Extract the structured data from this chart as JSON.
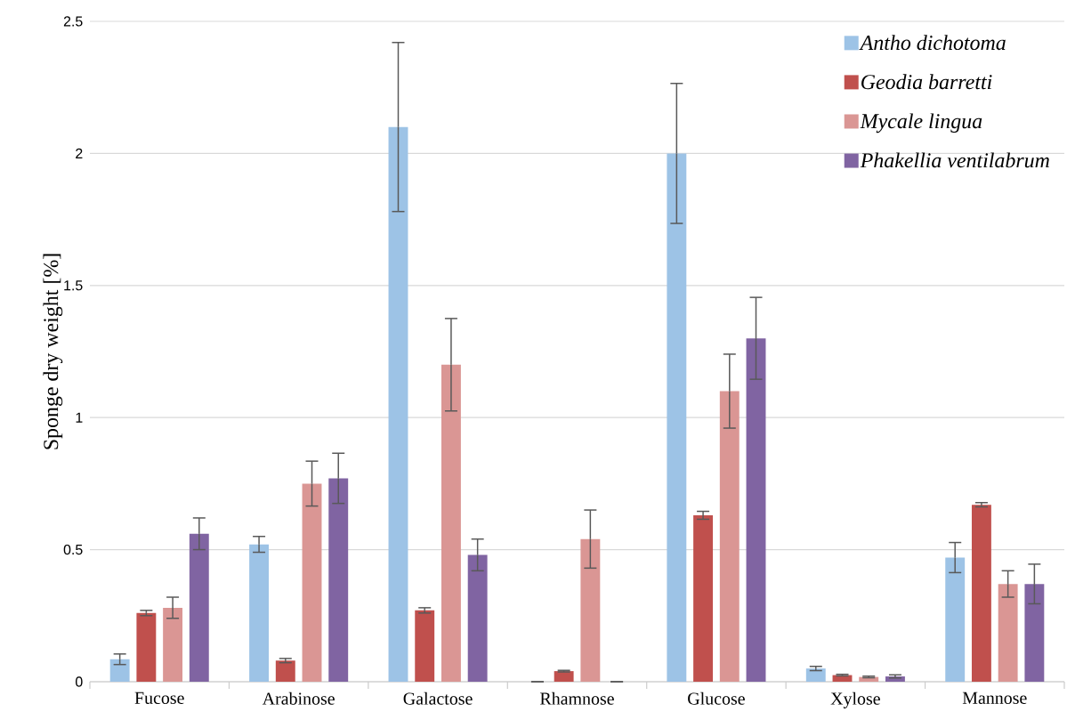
{
  "chart_data": {
    "type": "bar",
    "ylabel": "Sponge dry weight [%]",
    "categories": [
      "Fucose",
      "Arabinose",
      "Galactose",
      "Rhamnose",
      "Glucose",
      "Xylose",
      "Mannose"
    ],
    "series": [
      {
        "name": "Antho dichotoma",
        "color": "#9dc3e6",
        "values": [
          0.085,
          0.52,
          2.1,
          0,
          2.0,
          0.05,
          0.47
        ],
        "errors": [
          0.02,
          0.03,
          0.32,
          0,
          0.265,
          0.008,
          0.057
        ]
      },
      {
        "name": "Geodia barretti",
        "color": "#c0504d",
        "values": [
          0.26,
          0.08,
          0.27,
          0.04,
          0.63,
          0.025,
          0.67
        ],
        "errors": [
          0.01,
          0.008,
          0.01,
          0.003,
          0.015,
          0.003,
          0.008
        ]
      },
      {
        "name": "Mycale lingua",
        "color": "#da9694",
        "values": [
          0.28,
          0.75,
          1.2,
          0.54,
          1.1,
          0.018,
          0.37
        ],
        "errors": [
          0.04,
          0.085,
          0.175,
          0.11,
          0.14,
          0.003,
          0.05
        ]
      },
      {
        "name": "Phakellia ventilabrum",
        "color": "#8064a2",
        "values": [
          0.56,
          0.77,
          0.48,
          0,
          1.3,
          0.02,
          0.37
        ],
        "errors": [
          0.06,
          0.095,
          0.06,
          0,
          0.155,
          0.006,
          0.075
        ]
      }
    ],
    "ylim": [
      0,
      2.5
    ],
    "yticks": [
      0,
      0.5,
      1,
      1.5,
      2,
      2.5
    ],
    "grid": "y",
    "legend": "top right"
  }
}
